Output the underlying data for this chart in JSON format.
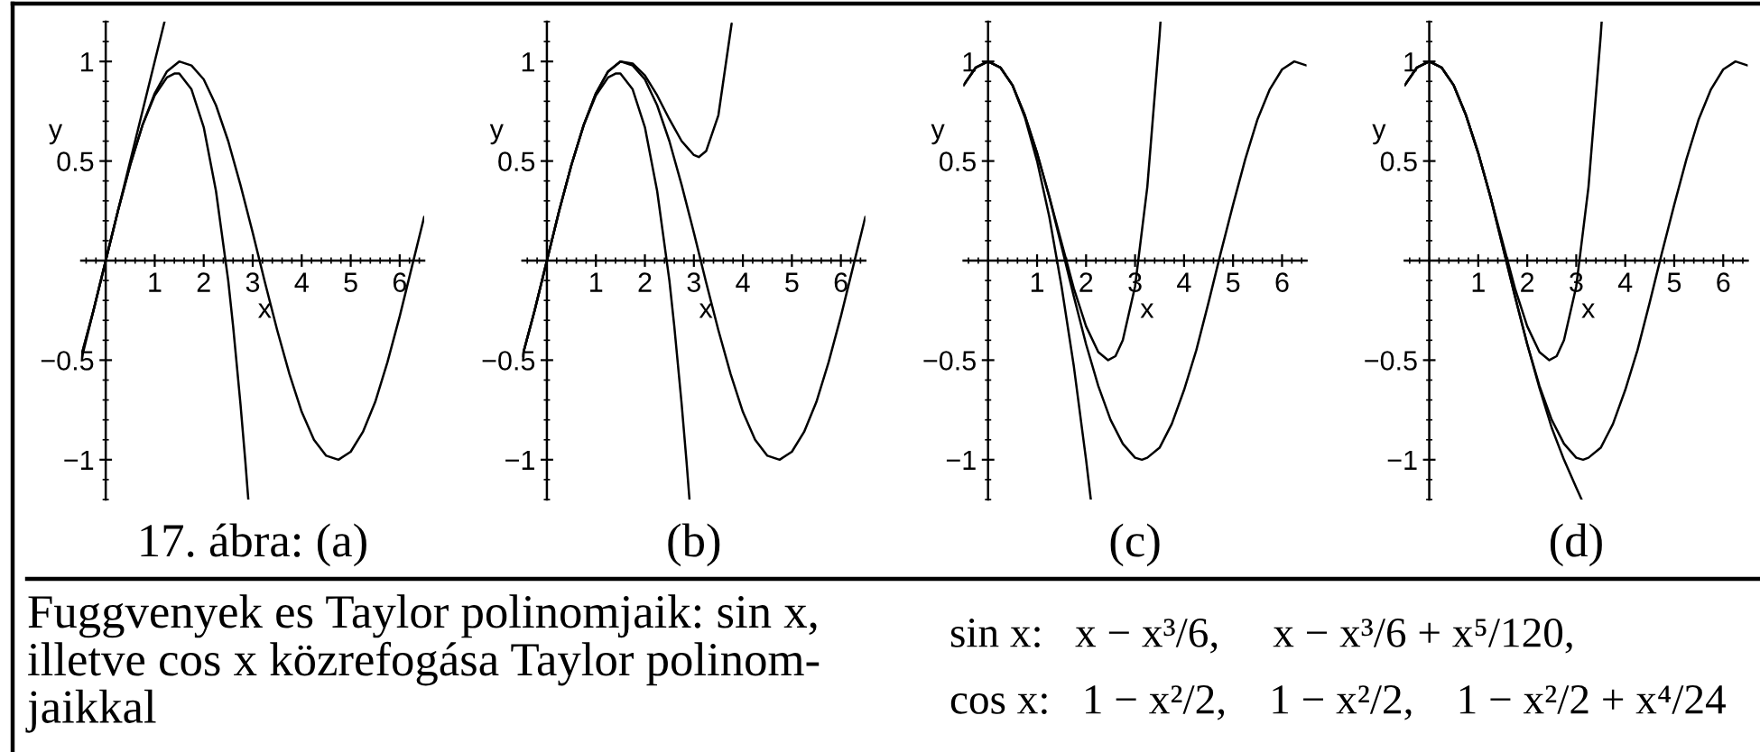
{
  "chart_data": [
    {
      "type": "line",
      "annotations": [
        "17. ábra: (a)"
      ],
      "xlabel": "x",
      "ylabel": "y",
      "xlim": [
        -0.5,
        6.5
      ],
      "ylim": [
        -1.2,
        1.2
      ],
      "xticks": [
        1,
        2,
        3,
        4,
        5,
        6
      ],
      "yticks": [
        -1,
        -0.5,
        0.5,
        1
      ],
      "series": [
        {
          "color": "#000000",
          "x": [
            -0.5,
            -0.25,
            0,
            0.25,
            0.5,
            0.75,
            1,
            1.25,
            1.5,
            1.75,
            2,
            2.25,
            2.5,
            2.75,
            3,
            3.25,
            3.5,
            3.75,
            4,
            4.25,
            4.5,
            4.75,
            5,
            5.25,
            5.5,
            5.75,
            6,
            6.25,
            6.5
          ],
          "values": [
            -0.48,
            -0.25,
            0,
            0.25,
            0.48,
            0.68,
            0.84,
            0.95,
            1.0,
            0.98,
            0.91,
            0.78,
            0.6,
            0.38,
            0.14,
            -0.11,
            -0.35,
            -0.57,
            -0.76,
            -0.9,
            -0.98,
            -1.0,
            -0.96,
            -0.86,
            -0.71,
            -0.51,
            -0.28,
            -0.03,
            0.22
          ]
        },
        {
          "color": "#000000",
          "x": [
            -0.5,
            1.2
          ],
          "values": [
            -0.5,
            1.2
          ]
        },
        {
          "color": "#000000",
          "x": [
            -0.5,
            -0.25,
            0,
            0.25,
            0.5,
            0.75,
            1,
            1.25,
            1.41,
            1.5,
            1.75,
            2,
            2.25,
            2.5,
            2.6,
            2.75,
            2.85,
            2.91
          ],
          "values": [
            -0.48,
            -0.25,
            0,
            0.25,
            0.48,
            0.68,
            0.83,
            0.92,
            0.94,
            0.94,
            0.86,
            0.67,
            0.35,
            -0.1,
            -0.33,
            -0.72,
            -1.01,
            -1.2
          ]
        }
      ]
    },
    {
      "type": "line",
      "annotations": [
        "(b)"
      ],
      "xlabel": "x",
      "ylabel": "y",
      "xlim": [
        -0.5,
        6.5
      ],
      "ylim": [
        -1.2,
        1.2
      ],
      "xticks": [
        1,
        2,
        3,
        4,
        5,
        6
      ],
      "yticks": [
        -1,
        -0.5,
        0.5,
        1
      ],
      "series": [
        {
          "color": "#000000",
          "x": [
            -0.5,
            -0.25,
            0,
            0.25,
            0.5,
            0.75,
            1,
            1.25,
            1.5,
            1.75,
            2,
            2.25,
            2.5,
            2.75,
            3,
            3.25,
            3.5,
            3.75,
            4,
            4.25,
            4.5,
            4.75,
            5,
            5.25,
            5.5,
            5.75,
            6,
            6.25,
            6.5
          ],
          "values": [
            -0.48,
            -0.25,
            0,
            0.25,
            0.48,
            0.68,
            0.84,
            0.95,
            1.0,
            0.98,
            0.91,
            0.78,
            0.6,
            0.38,
            0.14,
            -0.11,
            -0.35,
            -0.57,
            -0.76,
            -0.9,
            -0.98,
            -1.0,
            -0.96,
            -0.86,
            -0.71,
            -0.51,
            -0.28,
            -0.03,
            0.22
          ]
        },
        {
          "color": "#000000",
          "x": [
            -0.5,
            -0.25,
            0,
            0.25,
            0.5,
            0.75,
            1,
            1.25,
            1.41,
            1.5,
            1.75,
            2,
            2.25,
            2.5,
            2.6,
            2.75,
            2.85,
            2.91
          ],
          "values": [
            -0.48,
            -0.25,
            0,
            0.25,
            0.48,
            0.68,
            0.83,
            0.92,
            0.94,
            0.94,
            0.86,
            0.67,
            0.35,
            -0.1,
            -0.33,
            -0.72,
            -1.01,
            -1.2
          ]
        },
        {
          "color": "#000000",
          "x": [
            -0.5,
            -0.25,
            0,
            0.25,
            0.5,
            0.75,
            1,
            1.25,
            1.5,
            1.75,
            2,
            2.25,
            2.5,
            2.75,
            3,
            3.1,
            3.25,
            3.5,
            3.77
          ],
          "values": [
            -0.48,
            -0.25,
            0,
            0.25,
            0.48,
            0.68,
            0.84,
            0.95,
            1.0,
            0.99,
            0.93,
            0.83,
            0.71,
            0.6,
            0.53,
            0.52,
            0.55,
            0.73,
            1.19
          ]
        }
      ]
    },
    {
      "type": "line",
      "annotations": [
        "(c)"
      ],
      "xlabel": "x",
      "ylabel": "y",
      "xlim": [
        -0.5,
        6.5
      ],
      "ylim": [
        -1.2,
        1.2
      ],
      "xticks": [
        1,
        2,
        3,
        4,
        5,
        6
      ],
      "yticks": [
        -1,
        -0.5,
        0.5,
        1
      ],
      "series": [
        {
          "color": "#000000",
          "x": [
            -0.5,
            -0.25,
            0,
            0.25,
            0.5,
            0.75,
            1,
            1.25,
            1.5,
            1.75,
            2,
            2.25,
            2.5,
            2.75,
            3,
            3.14,
            3.25,
            3.5,
            3.75,
            4,
            4.25,
            4.5,
            4.75,
            5,
            5.25,
            5.5,
            5.75,
            6,
            6.25,
            6.5
          ],
          "values": [
            0.88,
            0.97,
            1.0,
            0.97,
            0.88,
            0.73,
            0.54,
            0.32,
            0.07,
            -0.18,
            -0.42,
            -0.63,
            -0.8,
            -0.92,
            -0.99,
            -1.0,
            -0.99,
            -0.94,
            -0.82,
            -0.65,
            -0.45,
            -0.21,
            0.04,
            0.28,
            0.51,
            0.71,
            0.86,
            0.96,
            1.0,
            0.98
          ]
        },
        {
          "color": "#000000",
          "x": [
            -0.5,
            -0.25,
            0,
            0.25,
            0.5,
            0.75,
            1,
            1.25,
            1.5,
            1.75,
            2,
            2.097
          ],
          "values": [
            0.88,
            0.97,
            1.0,
            0.97,
            0.88,
            0.72,
            0.5,
            0.22,
            -0.13,
            -0.53,
            -1.0,
            -1.2
          ]
        },
        {
          "color": "#000000",
          "x": [
            -0.5,
            -0.25,
            0,
            0.25,
            0.5,
            0.75,
            1,
            1.25,
            1.5,
            1.75,
            2,
            2.25,
            2.45,
            2.6,
            2.75,
            3,
            3.25,
            3.5,
            3.519
          ],
          "values": [
            0.88,
            0.97,
            1.0,
            0.97,
            0.88,
            0.73,
            0.54,
            0.32,
            0.09,
            -0.14,
            -0.33,
            -0.46,
            -0.5,
            -0.48,
            -0.4,
            -0.13,
            0.37,
            1.13,
            1.2
          ]
        }
      ]
    },
    {
      "type": "line",
      "annotations": [
        "(d)"
      ],
      "xlabel": "x",
      "ylabel": "y",
      "xlim": [
        -0.5,
        6.5
      ],
      "ylim": [
        -1.2,
        1.2
      ],
      "xticks": [
        1,
        2,
        3,
        4,
        5,
        6
      ],
      "yticks": [
        -1,
        -0.5,
        0.5,
        1
      ],
      "series": [
        {
          "color": "#000000",
          "x": [
            -0.5,
            -0.25,
            0,
            0.25,
            0.5,
            0.75,
            1,
            1.25,
            1.5,
            1.75,
            2,
            2.25,
            2.5,
            2.75,
            3,
            3.14,
            3.25,
            3.5,
            3.75,
            4,
            4.25,
            4.5,
            4.75,
            5,
            5.25,
            5.5,
            5.75,
            6,
            6.25,
            6.5
          ],
          "values": [
            0.88,
            0.97,
            1.0,
            0.97,
            0.88,
            0.73,
            0.54,
            0.32,
            0.07,
            -0.18,
            -0.42,
            -0.63,
            -0.8,
            -0.92,
            -0.99,
            -1.0,
            -0.99,
            -0.94,
            -0.82,
            -0.65,
            -0.45,
            -0.21,
            0.04,
            0.28,
            0.51,
            0.71,
            0.86,
            0.96,
            1.0,
            0.98
          ]
        },
        {
          "color": "#000000",
          "x": [
            -0.5,
            -0.25,
            0,
            0.25,
            0.5,
            0.75,
            1,
            1.25,
            1.5,
            1.75,
            2,
            2.25,
            2.45,
            2.6,
            2.75,
            3,
            3.25,
            3.5,
            3.519
          ],
          "values": [
            0.88,
            0.97,
            1.0,
            0.97,
            0.88,
            0.73,
            0.54,
            0.32,
            0.09,
            -0.14,
            -0.33,
            -0.46,
            -0.5,
            -0.48,
            -0.4,
            -0.13,
            0.37,
            1.13,
            1.2
          ]
        },
        {
          "color": "#000000",
          "x": [
            -0.5,
            -0.25,
            0,
            0.25,
            0.5,
            0.75,
            1,
            1.25,
            1.5,
            1.75,
            2,
            2.25,
            2.5,
            2.75,
            3,
            3.11
          ],
          "values": [
            0.88,
            0.97,
            1.0,
            0.97,
            0.88,
            0.73,
            0.54,
            0.32,
            0.07,
            -0.18,
            -0.42,
            -0.64,
            -0.84,
            -1.0,
            -1.14,
            -1.2
          ]
        }
      ]
    },
    {
      "type": "other",
      "annotations": [
        "Fuggvenyek es Taylor polinomjaik: sin x,\nilletve cos x közrefogása Taylor polinom-\njaikkal",
        "sin x:   x − x³/6,     x − x³/6 + x⁵/120,",
        "cos x:   1 − x²/2,    1 − x²/2,    1 − x²/2 + x⁴/24"
      ]
    }
  ]
}
